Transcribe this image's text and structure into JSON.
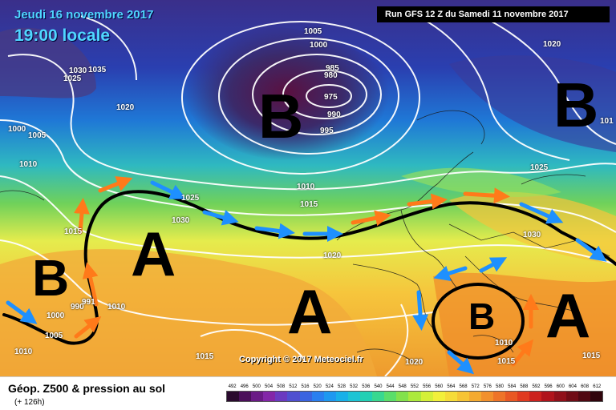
{
  "header": {
    "date": "Jeudi 16 novembre 2017",
    "time": "19:00 locale",
    "run": "Run GFS 12 Z du Samedi 11 novembre 2017"
  },
  "centers": [
    {
      "letter": "B",
      "type": "low"
    },
    {
      "letter": "B",
      "type": "low"
    },
    {
      "letter": "A",
      "type": "high"
    },
    {
      "letter": "B",
      "type": "low"
    },
    {
      "letter": "A",
      "type": "high"
    },
    {
      "letter": "B",
      "type": "low"
    },
    {
      "letter": "A",
      "type": "high"
    }
  ],
  "isobars": [
    "1005",
    "1000",
    "985",
    "980",
    "975",
    "990",
    "995",
    "1020",
    "1030",
    "1035",
    "1025",
    "1020",
    "1000",
    "1005",
    "1010",
    "101",
    "1025",
    "1025",
    "1010",
    "1015",
    "1030",
    "1015",
    "1030",
    "1020",
    "990",
    "991",
    "1010",
    "1000",
    "1005",
    "1010",
    "1015",
    "1020",
    "1010",
    "1015",
    "1015"
  ],
  "copyright": "Copyright © 2017 Meteociel.fr",
  "footer": {
    "title": "Géop. Z500 & pression au sol",
    "subtitle": "(+ 126h)"
  },
  "scale": {
    "labels": [
      "492",
      "496",
      "500",
      "504",
      "508",
      "512",
      "516",
      "520",
      "524",
      "528",
      "532",
      "536",
      "540",
      "544",
      "548",
      "552",
      "556",
      "560",
      "564",
      "568",
      "572",
      "576",
      "580",
      "584",
      "588",
      "592",
      "596",
      "600",
      "604",
      "608",
      "612"
    ],
    "colors": [
      "#2a0a2e",
      "#4b0f5a",
      "#6a1a86",
      "#8326a8",
      "#6a3ac0",
      "#4f4fd0",
      "#3a64e0",
      "#2a7ff0",
      "#1e98f0",
      "#18b0e8",
      "#1cc4d4",
      "#22d0b4",
      "#38d890",
      "#5ade6a",
      "#82e24c",
      "#acea3c",
      "#d4f038",
      "#f2f03a",
      "#f6dc38",
      "#f6c434",
      "#f4aa30",
      "#f2902c",
      "#ee7428",
      "#e85824",
      "#e03a20",
      "#cc221e",
      "#b0141c",
      "#90101a",
      "#700c16",
      "#500812",
      "#30040c"
    ]
  }
}
